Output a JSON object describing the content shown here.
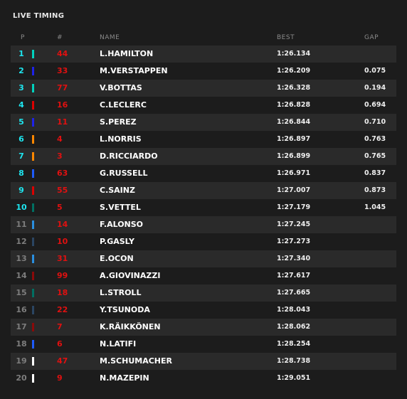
{
  "header": {
    "title": "LIVE TIMING"
  },
  "table": {
    "columns": [
      "P",
      "#",
      "NAME",
      "BEST",
      "GAP"
    ],
    "rows": [
      {
        "pos": "1",
        "number": "44",
        "name": "L.HAMILTON",
        "best": "1:26.134",
        "gap": null,
        "color": "#00d2be"
      },
      {
        "pos": "2",
        "number": "33",
        "name": "M.VERSTAPPEN",
        "best": "1:26.209",
        "gap": "0.075",
        "color": "#1e22e8"
      },
      {
        "pos": "3",
        "number": "77",
        "name": "V.BOTTAS",
        "best": "1:26.328",
        "gap": "0.194",
        "color": "#00d2be"
      },
      {
        "pos": "4",
        "number": "16",
        "name": "C.LECLERC",
        "best": "1:26.828",
        "gap": "0.694",
        "color": "#dc0000"
      },
      {
        "pos": "5",
        "number": "11",
        "name": "S.PEREZ",
        "best": "1:26.844",
        "gap": "0.710",
        "color": "#1e22e8"
      },
      {
        "pos": "6",
        "number": "4",
        "name": "L.NORRIS",
        "best": "1:26.897",
        "gap": "0.763",
        "color": "#ff8700"
      },
      {
        "pos": "7",
        "number": "3",
        "name": "D.RICCIARDO",
        "best": "1:26.899",
        "gap": "0.765",
        "color": "#ff8700"
      },
      {
        "pos": "8",
        "number": "63",
        "name": "G.RUSSELL",
        "best": "1:26.971",
        "gap": "0.837",
        "color": "#1e5bff"
      },
      {
        "pos": "9",
        "number": "55",
        "name": "C.SAINZ",
        "best": "1:27.007",
        "gap": "0.873",
        "color": "#dc0000"
      },
      {
        "pos": "10",
        "number": "5",
        "name": "S.VETTEL",
        "best": "1:27.179",
        "gap": "1.045",
        "color": "#006f62"
      },
      {
        "pos": "11",
        "number": "14",
        "name": "F.ALONSO",
        "best": "1:27.245",
        "gap": null,
        "color": "#2a8fe0"
      },
      {
        "pos": "12",
        "number": "10",
        "name": "P.GASLY",
        "best": "1:27.273",
        "gap": null,
        "color": "#2b4562"
      },
      {
        "pos": "13",
        "number": "31",
        "name": "E.OCON",
        "best": "1:27.340",
        "gap": null,
        "color": "#2a8fe0"
      },
      {
        "pos": "14",
        "number": "99",
        "name": "A.GIOVINAZZI",
        "best": "1:27.617",
        "gap": null,
        "color": "#8a0a0a"
      },
      {
        "pos": "15",
        "number": "18",
        "name": "L.STROLL",
        "best": "1:27.665",
        "gap": null,
        "color": "#006f62"
      },
      {
        "pos": "16",
        "number": "22",
        "name": "Y.TSUNODA",
        "best": "1:28.043",
        "gap": null,
        "color": "#2b4562"
      },
      {
        "pos": "17",
        "number": "7",
        "name": "K.RÄIKKÖNEN",
        "best": "1:28.062",
        "gap": null,
        "color": "#8a0a0a"
      },
      {
        "pos": "18",
        "number": "6",
        "name": "N.LATIFI",
        "best": "1:28.254",
        "gap": null,
        "color": "#1e5bff"
      },
      {
        "pos": "19",
        "number": "47",
        "name": "M.SCHUMACHER",
        "best": "1:28.738",
        "gap": null,
        "color": "#ffffff"
      },
      {
        "pos": "20",
        "number": "9",
        "name": "N.MAZEPIN",
        "best": "1:29.051",
        "gap": null,
        "color": "#ffffff"
      }
    ]
  }
}
